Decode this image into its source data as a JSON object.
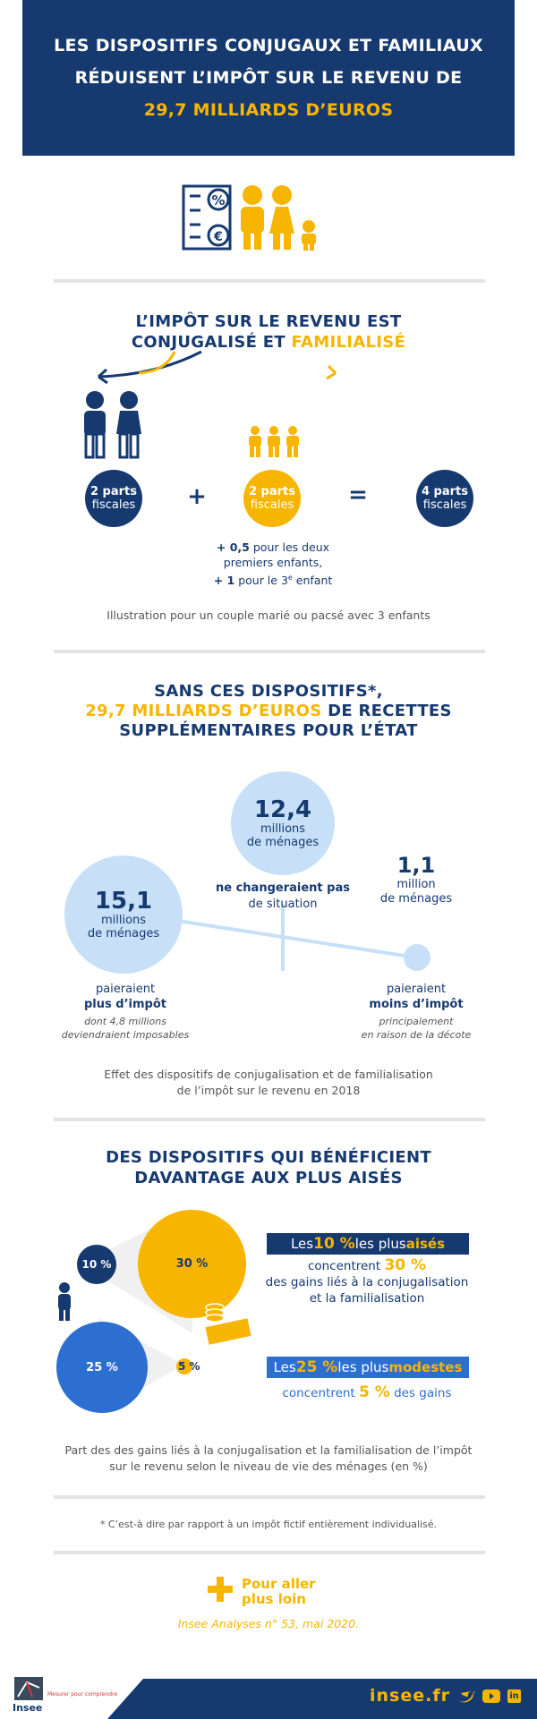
{
  "header": {
    "line1": "LES DISPOSITIFS CONJUGAUX ET FAMILIAUX",
    "line2": "RÉDUISENT L’IMPÔT SUR LE REVENU DE",
    "line3": "29,7 MILLIARDS D’EUROS"
  },
  "section1": {
    "title_line1": "L’IMPÔT SUR LE REVENU EST",
    "title_line2_a": "CONJUGALISÉ ET ",
    "title_line2_b": "FAMILIALISÉ",
    "circle_left_top": "2 parts",
    "circle_left_bottom": "fiscales",
    "plus": "+",
    "circle_mid_top": "2 parts",
    "circle_mid_bottom": "fiscales",
    "equals": "=",
    "circle_right_top": "4 parts",
    "circle_right_bottom": "fiscales",
    "note_line1_a": "+ 0,5",
    "note_line1_b": " pour les deux",
    "note_line2": "premiers enfants,",
    "note_line3_a": "+ 1",
    "note_line3_b": " pour le 3",
    "note_line3_sup": "e",
    "note_line3_c": " enfant",
    "caption": "Illustration pour un couple marié ou pacsé avec 3 enfants"
  },
  "section2": {
    "title_line1": "SANS CES DISPOSITIFS*,",
    "title_line2_a": "29,7 MILLIARDS D’EUROS",
    "title_line2_b": " DE RECETTES",
    "title_line3": "SUPPLÉMENTAIRES POUR L’ÉTAT",
    "c1_value": "12,4",
    "c1_unit1": "millions",
    "c1_unit2": "de ménages",
    "c1_label1": "ne changeraient pas",
    "c1_label2": "de situation",
    "c2_value": "15,1",
    "c2_unit1": "millions",
    "c2_unit2": "de ménages",
    "c2_label1": "paieraient",
    "c2_label2": "plus d’impôt",
    "c2_sub1": "dont 4,8 millions",
    "c2_sub2": "deviendraient imposables",
    "c3_value": "1,1",
    "c3_unit1": "million",
    "c3_unit2": "de ménages",
    "c3_label1": "paieraient",
    "c3_label2": "moins d’impôt",
    "c3_sub1": "principalement",
    "c3_sub2": "en raison de la décote",
    "caption1": "Effet des dispositifs de conjugalisation et de familialisation",
    "caption2": "de l’impôt sur le revenu en 2018"
  },
  "section3": {
    "title_line1": "DES DISPOSITIFS QUI BÉNÉFICIENT",
    "title_line2": "DAVANTAGE AUX PLUS AISÉS",
    "top_pop": "10 %",
    "top_gain": "30 %",
    "bottom_pop": "25 %",
    "bottom_gain": "5 %",
    "box1_a": "Les ",
    "box1_b": "10 %",
    "box1_c": " les plus ",
    "box1_d": "aisés",
    "box1_l1_a": "concentrent ",
    "box1_l1_b": "30 %",
    "box1_l2": "des gains liés à la conjugalisation",
    "box1_l3": "et la familialisation",
    "box2_a": "Les ",
    "box2_b": "25 %",
    "box2_c": " les plus ",
    "box2_d": "modestes",
    "box2_l1_a": "concentrent ",
    "box2_l1_b": "5 %",
    "box2_l1_c": " des gains",
    "caption1": "Part des des gains liés à la conjugalisation et la familialisation de l’impôt",
    "caption2": "sur le revenu selon le niveau de vie des ménages (en %)"
  },
  "footnote": "* C’est-à dire par rapport à un impôt fictif entièrement individualisé.",
  "more": {
    "title1": "Pour aller",
    "title2": "plus loin",
    "ref": "Insee Analyses n° 53, mai 2020."
  },
  "footer": {
    "logo": "Insee",
    "tagline": "Mesurer pour comprendre",
    "site": "insee.fr"
  },
  "colors": {
    "navy": "#163a70",
    "gold": "#f7b500",
    "light_blue": "#c7e0f8",
    "blue": "#2d6fd1"
  }
}
